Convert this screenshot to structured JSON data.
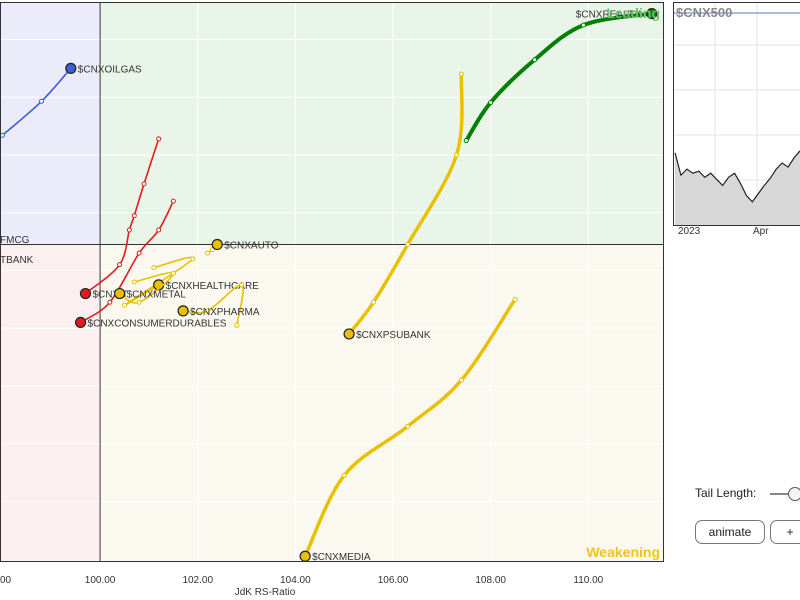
{
  "chart_data": {
    "type": "scatter",
    "xlabel": "JdK RS-Ratio",
    "ylabel": "",
    "xlim": [
      97.95,
      111.55
    ],
    "ylim": [
      95.95,
      105.65
    ],
    "center": [
      100,
      101.45
    ],
    "x_ticks": [
      "100.00",
      "102.00",
      "104.00",
      "106.00",
      "108.00",
      "110.00"
    ],
    "x_tick_values": [
      100,
      102,
      104,
      106,
      108,
      110
    ],
    "partial_tick": "00",
    "quadrants": {
      "leading": "Leading",
      "weakening": "Weakening",
      "lagging": "",
      "improving": ""
    },
    "series": [
      {
        "name": "$CNXREALTY",
        "color": "#008000",
        "points": [
          [
            107.5,
            103.25
          ],
          [
            108.0,
            103.91
          ],
          [
            108.9,
            104.65
          ],
          [
            109.9,
            105.25
          ],
          [
            111.3,
            105.45
          ]
        ]
      },
      {
        "name": "$CNXOILGAS",
        "color": "#3b5fd6",
        "points": [
          [
            98.0,
            103.34
          ],
          [
            98.8,
            103.93
          ],
          [
            99.4,
            104.5
          ]
        ]
      },
      {
        "name": "$CNXIT",
        "color": "#e31a1c",
        "points": [
          [
            101.2,
            103.28
          ],
          [
            100.9,
            102.5
          ],
          [
            100.7,
            101.95
          ],
          [
            100.6,
            101.7
          ],
          [
            100.4,
            101.1
          ],
          [
            99.7,
            100.6
          ]
        ]
      },
      {
        "name": "$CNXCONSUMERDURABLES",
        "color": "#e31a1c",
        "points": [
          [
            101.5,
            102.2
          ],
          [
            101.2,
            101.7
          ],
          [
            100.8,
            101.3
          ],
          [
            100.2,
            100.45
          ],
          [
            99.6,
            100.1
          ]
        ]
      },
      {
        "name": "$CNXAUTO",
        "color": "#e8c000",
        "points": [
          [
            102.3,
            101.36
          ],
          [
            102.2,
            101.3
          ],
          [
            102.4,
            101.45
          ]
        ]
      },
      {
        "name": "$CNXHEALTHCARE",
        "color": "#e8c000",
        "points": [
          [
            101.1,
            101.05
          ],
          [
            101.9,
            101.2
          ],
          [
            100.5,
            100.4
          ],
          [
            101.2,
            100.75
          ]
        ]
      },
      {
        "name": "$CNXMETAL",
        "color": "#e8c000",
        "points": [
          [
            100.7,
            100.8
          ],
          [
            101.5,
            100.95
          ],
          [
            100.8,
            100.45
          ],
          [
            100.4,
            100.6
          ]
        ]
      },
      {
        "name": "$CNXPHARMA",
        "color": "#e8c000",
        "points": [
          [
            102.8,
            100.05
          ],
          [
            102.9,
            100.75
          ],
          [
            102.2,
            100.3
          ],
          [
            101.7,
            100.3
          ]
        ]
      },
      {
        "name": "$CNXPSUBANK",
        "color": "#e8c000",
        "points": [
          [
            107.4,
            104.4
          ],
          [
            107.3,
            103.0
          ],
          [
            106.3,
            101.45
          ],
          [
            105.6,
            100.45
          ],
          [
            105.1,
            99.9
          ]
        ]
      },
      {
        "name": "$CNXMEDIA",
        "color": "#e8c000",
        "points": [
          [
            108.5,
            100.5
          ],
          [
            107.4,
            99.1
          ],
          [
            106.3,
            98.3
          ],
          [
            105.0,
            97.45
          ],
          [
            104.2,
            96.05
          ]
        ]
      }
    ],
    "clipped_labels": [
      "FMCG",
      "TBANK"
    ],
    "mini_chart": {
      "type": "area",
      "title": "$CNX500",
      "x_labels": [
        "2023",
        "Apr"
      ],
      "values": [
        60,
        38,
        44,
        40,
        42,
        36,
        40,
        34,
        28,
        36,
        40,
        30,
        18,
        12,
        20,
        28,
        35,
        44,
        50,
        46,
        55,
        62
      ]
    }
  },
  "controls": {
    "tail_length_label": "Tail Length:",
    "animate_label": "animate",
    "plus_label": "+"
  },
  "colors": {
    "leading": "#eaf5ea",
    "weakening": "#fbf9ef",
    "lagging": "#fbeff0",
    "improving": "#ecebfa",
    "leading_text": "#6dbd6d",
    "weakening_text": "#f0c419"
  }
}
